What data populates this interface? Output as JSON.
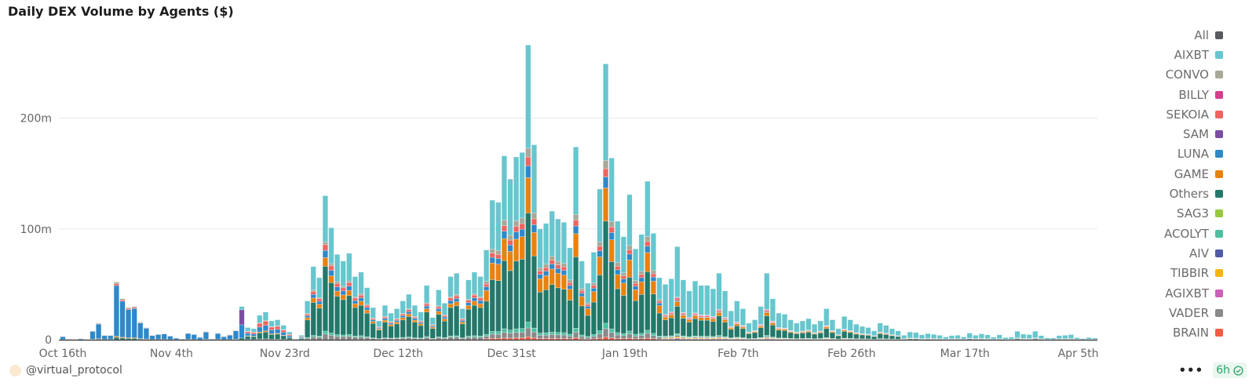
{
  "title": "Daily DEX Volume by Agents ($)",
  "footer": {
    "handle": "@virtual_protocol",
    "more": "•••",
    "refresh": "6h"
  },
  "legend": [
    {
      "label": "All",
      "color": "#5a5a62"
    },
    {
      "label": "AIXBT",
      "color": "#67c6ce"
    },
    {
      "label": "CONVO",
      "color": "#a8a898"
    },
    {
      "label": "BILLY",
      "color": "#d63d8e"
    },
    {
      "label": "SEKOIA",
      "color": "#ef6461"
    },
    {
      "label": "SAM",
      "color": "#7b4ea3"
    },
    {
      "label": "LUNA",
      "color": "#2e88c9"
    },
    {
      "label": "GAME",
      "color": "#e8820e"
    },
    {
      "label": "Others",
      "color": "#23786a"
    },
    {
      "label": "SAG3",
      "color": "#96c93d"
    },
    {
      "label": "ACOLYT",
      "color": "#4dbfa0"
    },
    {
      "label": "AIV",
      "color": "#4f5aa8"
    },
    {
      "label": "TIBBIR",
      "color": "#f5b50f"
    },
    {
      "label": "AGIXBT",
      "color": "#cc5fb8"
    },
    {
      "label": "VADER",
      "color": "#8a8a8a"
    },
    {
      "label": "BRAIN",
      "color": "#f25c44"
    }
  ],
  "chart_data": {
    "type": "bar",
    "stacked": true,
    "title": "Daily DEX Volume by Agents ($)",
    "unit": "millions USD",
    "start_date": "Oct 16th",
    "interval": "daily",
    "ylim": [
      0,
      270
    ],
    "yticks": [
      {
        "value": 0,
        "label": "0"
      },
      {
        "value": 100,
        "label": "100m"
      },
      {
        "value": 200,
        "label": "200m"
      }
    ],
    "xticks": [
      {
        "day": 0,
        "label": "Oct 16th"
      },
      {
        "day": 19,
        "label": "Nov 4th"
      },
      {
        "day": 38,
        "label": "Nov 23rd"
      },
      {
        "day": 57,
        "label": "Dec 12th"
      },
      {
        "day": 76,
        "label": "Dec 31st"
      },
      {
        "day": 95,
        "label": "Jan 19th"
      },
      {
        "day": 114,
        "label": "Feb 7th"
      },
      {
        "day": 133,
        "label": "Feb 26th"
      },
      {
        "day": 152,
        "label": "Mar 17th"
      },
      {
        "day": 171,
        "label": "Apr 5th"
      }
    ],
    "grid": true,
    "legend_position": "right",
    "stack_order": [
      "BRAIN",
      "VADER",
      "AGIXBT",
      "TIBBIR",
      "AIV",
      "ACOLYT",
      "SAG3",
      "Others",
      "GAME",
      "LUNA",
      "SAM",
      "SEKOIA",
      "BILLY",
      "CONVO",
      "AIXBT"
    ],
    "totals": [
      3,
      0.5,
      0.3,
      1,
      0.3,
      8,
      15,
      4,
      4,
      52,
      37,
      29,
      30,
      16,
      11,
      4,
      5,
      5.5,
      3.5,
      1.6,
      0.7,
      6,
      5,
      2.3,
      7.4,
      0.7,
      6,
      3,
      4.4,
      8.5,
      30,
      11,
      10,
      22,
      25,
      17,
      18,
      13,
      7,
      1,
      4,
      35,
      66,
      56,
      130,
      101,
      77,
      71,
      78,
      57,
      61,
      47,
      29,
      17,
      31,
      24,
      28,
      35,
      41,
      31,
      25,
      49,
      20,
      45,
      33,
      57,
      60,
      28,
      54,
      61,
      57,
      81,
      126,
      124,
      166,
      145,
      165,
      169,
      266,
      176,
      100,
      105,
      116,
      109,
      106,
      83,
      174,
      71,
      51,
      79,
      136,
      249,
      164,
      107,
      93,
      131,
      82,
      95,
      143,
      96,
      56,
      50,
      55,
      84,
      54,
      44,
      53,
      49,
      49,
      46,
      60,
      44,
      26,
      35,
      28,
      15,
      18,
      30,
      60,
      37,
      24,
      23,
      18,
      15,
      17,
      19,
      14,
      17,
      28,
      18,
      10,
      21,
      18,
      14,
      12,
      11,
      8,
      15,
      13,
      10,
      8,
      4,
      7,
      6.5,
      4.4,
      5.5,
      4.8,
      4,
      2.5,
      3.7,
      4,
      2.5,
      6,
      4,
      5.3,
      4.4,
      2.3,
      4.4,
      2,
      2.3,
      7.6,
      5,
      4.6,
      7.6,
      3.7,
      1.6,
      1.6,
      3.7,
      4,
      4.6,
      1.8,
      1,
      2,
      1.5
    ],
    "composition": [
      {
        "days": [
          0,
          29
        ],
        "shares": {
          "LUNA": 0.88,
          "Others": 0.04,
          "GAME": 0.02,
          "SEKOIA": 0.03,
          "CONVO": 0.03
        }
      },
      {
        "days": [
          30,
          30
        ],
        "shares": {
          "SAM": 0.45,
          "LUNA": 0.4,
          "AIXBT": 0.1,
          "Others": 0.05
        }
      },
      {
        "days": [
          31,
          40
        ],
        "shares": {
          "AIXBT": 0.3,
          "SEKOIA": 0.15,
          "LUNA": 0.2,
          "Others": 0.25,
          "GAME": 0.04,
          "CONVO": 0.03,
          "VADER": 0.03
        }
      },
      {
        "days": [
          41,
          70
        ],
        "shares": {
          "AIXBT": 0.32,
          "CONVO": 0.02,
          "SEKOIA": 0.04,
          "LUNA": 0.05,
          "GAME": 0.06,
          "Others": 0.45,
          "VADER": 0.04,
          "ACOLYT": 0.02
        }
      },
      {
        "days": [
          71,
          100
        ],
        "shares": {
          "AIXBT": 0.35,
          "CONVO": 0.03,
          "SEKOIA": 0.03,
          "LUNA": 0.04,
          "GAME": 0.12,
          "Others": 0.37,
          "ACOLYT": 0.02,
          "VADER": 0.03,
          "BRAIN": 0.01
        }
      },
      {
        "days": [
          101,
          140
        ],
        "shares": {
          "AIXBT": 0.55,
          "CONVO": 0.01,
          "SEKOIA": 0.02,
          "BILLY": 0.01,
          "LUNA": 0.01,
          "GAME": 0.05,
          "Others": 0.3,
          "SAG3": 0.005,
          "ACOLYT": 0.015,
          "AIV": 0.01,
          "TIBBIR": 0.015,
          "AGIXBT": 0.01,
          "VADER": 0.01
        }
      },
      {
        "days": [
          141,
          173
        ],
        "shares": {
          "AIXBT": 0.78,
          "Others": 0.1,
          "GAME": 0.03,
          "SEKOIA": 0.02,
          "TIBBIR": 0.02,
          "VADER": 0.02,
          "SAM": 0.01,
          "CONVO": 0.02
        }
      }
    ]
  }
}
